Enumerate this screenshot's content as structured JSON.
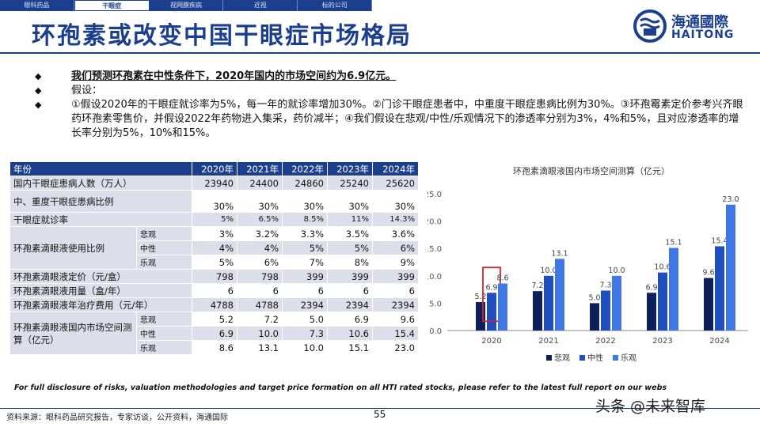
{
  "nav": {
    "tabs": [
      {
        "label": "眼科药品",
        "active": false
      },
      {
        "label": "干眼症",
        "active": true
      },
      {
        "label": "视网膜疾病",
        "active": false
      },
      {
        "label": "近视",
        "active": false
      },
      {
        "label": "标的公司",
        "active": false
      }
    ]
  },
  "title": "环孢素或改变中国干眼症市场格局",
  "logo": {
    "cn": "海通國際",
    "en": "HAITONG"
  },
  "bullets": [
    "我们预测环孢素在中性条件下，2020年国内的市场空间约为6.9亿元。",
    "假设：",
    "①假设2020年的干眼症就诊率为5%，每一年的就诊率增加30%。②门诊干眼症患者中，中重度干眼症患病比例为30%。③环孢霉素定价参考兴齐眼药环孢素零售价，并假设2022年药物进入集采，药价减半；④我们假设在悲观/中性/乐观情况下的渗透率分别为3%，4%和5%，且对应渗透率的增长率分别为5%，10%和15%。"
  ],
  "table": {
    "header": {
      "label": "年份",
      "years": [
        "2020年",
        "2021年",
        "2022年",
        "2023年",
        "2024年"
      ]
    },
    "rows": [
      {
        "label": "国内干眼症患病人数（万人）",
        "values": [
          "23940",
          "24400",
          "24860",
          "25240",
          "25620"
        ]
      },
      {
        "label": "中、重度干眼症患病比例",
        "values": [
          "30%",
          "30%",
          "30%",
          "30%",
          "30%"
        ]
      },
      {
        "label": "干眼症就诊率",
        "values": [
          "5%",
          "6.5%",
          "8.5%",
          "11%",
          "14.3%"
        ]
      }
    ],
    "usage": {
      "label": "环孢素滴眼液使用比例",
      "sub": [
        {
          "label": "悲观",
          "values": [
            "3%",
            "3.2%",
            "3.3%",
            "3.5%",
            "3.6%"
          ]
        },
        {
          "label": "中性",
          "values": [
            "4%",
            "4%",
            "5%",
            "5%",
            "6%"
          ]
        },
        {
          "label": "乐观",
          "values": [
            "5%",
            "6%",
            "7%",
            "8%",
            "9%"
          ]
        }
      ]
    },
    "rows2": [
      {
        "label": "环孢素滴眼液定价（元/盒）",
        "values": [
          "798",
          "798",
          "399",
          "399",
          "399"
        ]
      },
      {
        "label": "环孢素滴眼液用量（盒/年）",
        "values": [
          "6",
          "6",
          "6",
          "6",
          "6"
        ]
      },
      {
        "label": "环孢素滴眼液年治疗费用（元/年）",
        "values": [
          "4788",
          "4788",
          "2394",
          "2394",
          "2394"
        ]
      }
    ],
    "market": {
      "label": "环孢素滴眼液国内市场空间测算（亿元）",
      "sub": [
        {
          "label": "悲观",
          "values": [
            "5.2",
            "7.2",
            "5.0",
            "6.9",
            "9.6"
          ]
        },
        {
          "label": "中性",
          "values": [
            "6.9",
            "10.0",
            "7.3",
            "10.6",
            "15.4"
          ]
        },
        {
          "label": "乐观",
          "values": [
            "8.6",
            "13.1",
            "10.0",
            "15.1",
            "23.0"
          ]
        }
      ]
    }
  },
  "chart_data": {
    "type": "bar",
    "title": "环孢素滴眼液国内市场空间测算（亿元）",
    "categories": [
      "2020",
      "2021",
      "2022",
      "2023",
      "2024"
    ],
    "series": [
      {
        "name": "悲观",
        "values": [
          5.2,
          7.2,
          5.0,
          6.9,
          9.6
        ],
        "color": "#0d1f5c"
      },
      {
        "name": "中性",
        "values": [
          6.9,
          10.0,
          7.3,
          10.6,
          15.4
        ],
        "color": "#1f4fbf"
      },
      {
        "name": "乐观",
        "values": [
          8.6,
          13.1,
          10.0,
          15.1,
          23.0
        ],
        "color": "#3f78e6"
      }
    ],
    "ylim": [
      0,
      25
    ],
    "yticks": [
      "0.0",
      "5.0",
      "10.0",
      "15.0",
      "20.0",
      "25.0"
    ],
    "highlight": {
      "category": "2020",
      "series": "中性",
      "color": "#d9232d"
    },
    "legend": "bottom"
  },
  "disclaimer": "For full disclosure of risks, valuation methodologies and target price formation on all HTI rated stocks, please refer to the latest full report on our webs",
  "source": "资料来源：眼科药品研究报告，专家访谈，公开资料，海通国际",
  "page_number": "55",
  "watermark": "头条 @未来智库",
  "colors": {
    "brand": "#1b3f8e",
    "row_gray": "#dcdfea"
  }
}
